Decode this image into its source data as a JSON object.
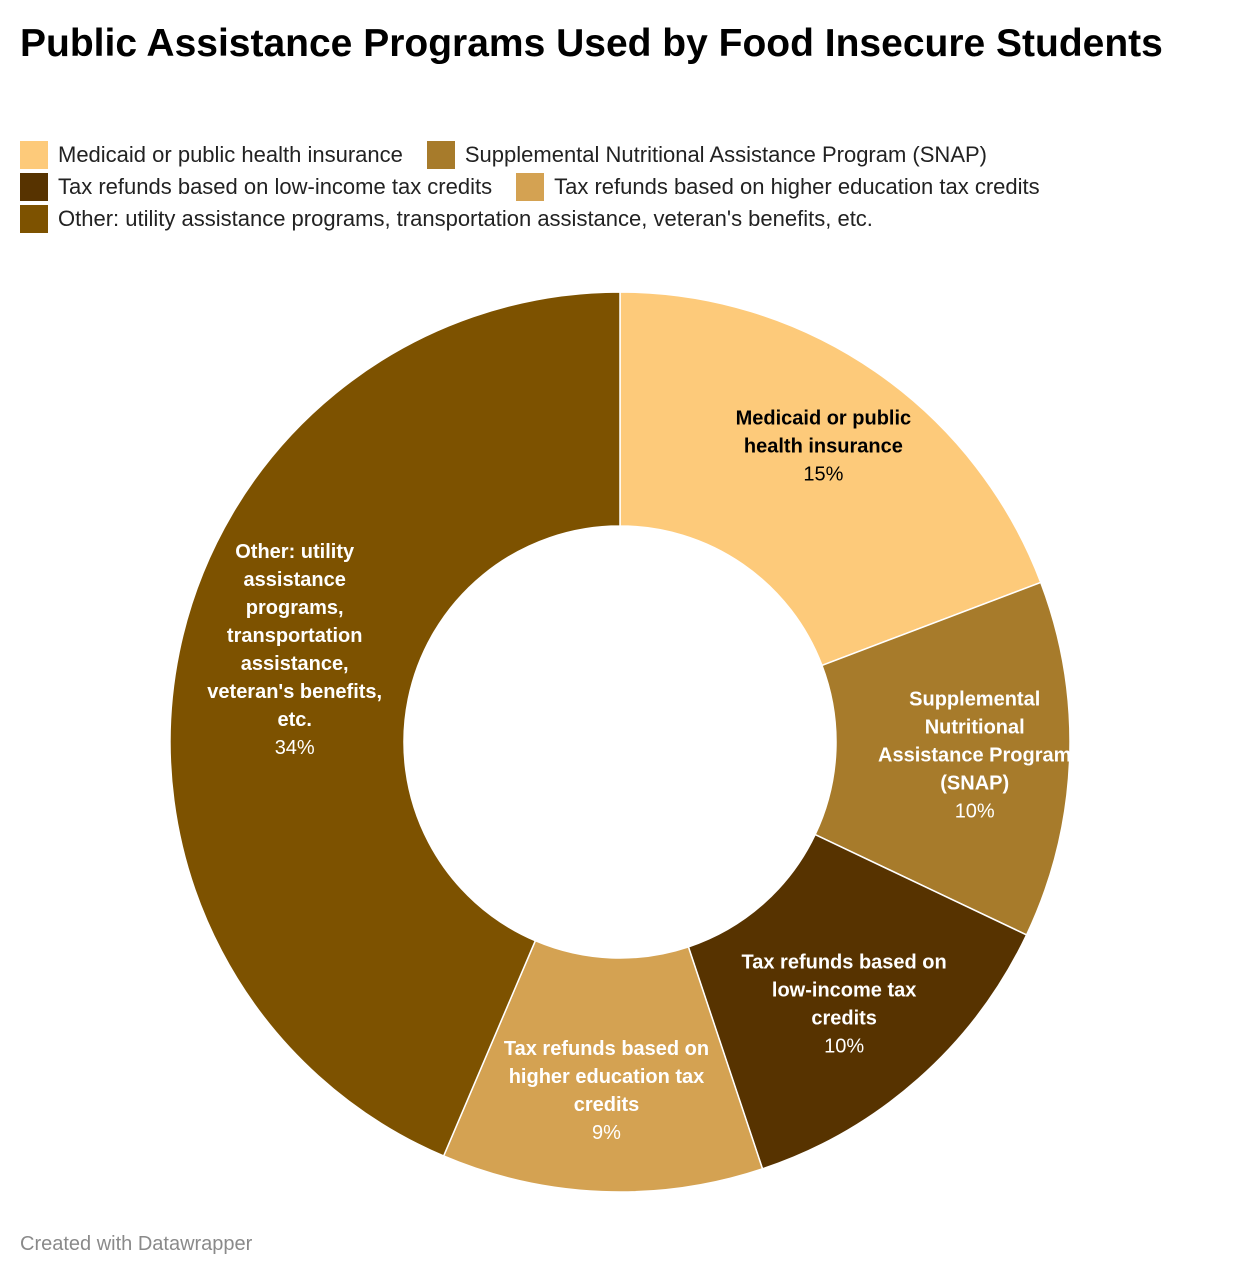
{
  "title": "Public Assistance Programs Used by Food Insecure Students",
  "footer": "Created with Datawrapper",
  "legend": [
    [
      {
        "label": "Medicaid or public health insurance",
        "color": "#fdca7a"
      },
      {
        "label": "Supplemental Nutritional Assistance Program (SNAP)",
        "color": "#a77b2b"
      }
    ],
    [
      {
        "label": "Tax refunds based on low-income tax credits",
        "color": "#573300"
      },
      {
        "label": "Tax refunds based on higher education tax credits",
        "color": "#d4a252"
      }
    ],
    [
      {
        "label": "Other: utility assistance programs, transportation assistance, veteran's benefits, etc.",
        "color": "#7d5200"
      }
    ]
  ],
  "chart_data": {
    "type": "pie",
    "variant": "donut",
    "categories": [
      "Medicaid or public health insurance",
      "Supplemental Nutritional Assistance Program (SNAP)",
      "Tax refunds based on low-income tax credits",
      "Tax refunds based on higher education tax credits",
      "Other: utility assistance programs, transportation assistance, veteran's benefits, etc."
    ],
    "values": [
      15,
      10,
      10,
      9,
      34
    ],
    "value_labels": [
      "15%",
      "10%",
      "10%",
      "9%",
      "34%"
    ],
    "colors": [
      "#fdca7a",
      "#a77b2b",
      "#573300",
      "#d4a252",
      "#7d5200"
    ],
    "label_colors": [
      "#000000",
      "#ffffff",
      "#ffffff",
      "#ffffff",
      "#ffffff"
    ],
    "slice_labels": [
      [
        "Medicaid or public",
        "health insurance"
      ],
      [
        "Supplemental",
        "Nutritional",
        "Assistance Program",
        "(SNAP)"
      ],
      [
        "Tax refunds based on",
        "low-income tax",
        "credits"
      ],
      [
        "Tax refunds based on",
        "higher education tax",
        "credits"
      ],
      [
        "Other: utility",
        "assistance",
        "programs,",
        "transportation",
        "assistance,",
        "veteran's benefits,",
        "etc."
      ]
    ],
    "legend_position": "top"
  }
}
